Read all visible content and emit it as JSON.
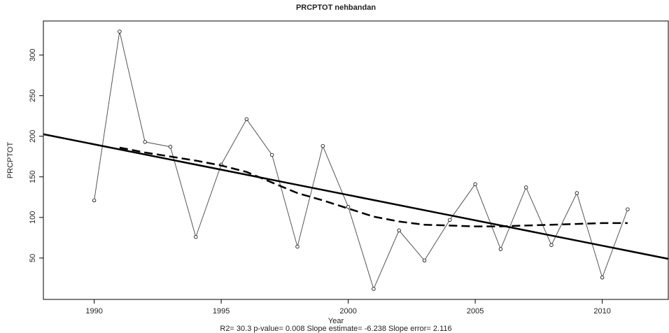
{
  "chart_data": {
    "type": "line",
    "title": "PRCPTOT   nehbandan",
    "x_label": "Year",
    "y_label": "PRCPTOT",
    "footnote": "R2= 30.3  p-value= 0.008  Slope estimate= -6.238  Slope error= 2.116",
    "x": [
      1990,
      1991,
      1992,
      1993,
      1994,
      1995,
      1996,
      1997,
      1998,
      1999,
      2000,
      2001,
      2002,
      2003,
      2004,
      2005,
      2006,
      2007,
      2008,
      2009,
      2010,
      2011
    ],
    "series": [
      {
        "name": "PRCPTOT",
        "color": "#555555",
        "style": "points-line",
        "values": [
          121,
          329,
          193,
          187,
          76,
          165,
          221,
          177,
          64,
          188,
          113,
          12,
          84,
          47,
          97,
          141,
          61,
          137,
          66,
          130,
          26,
          110
        ]
      },
      {
        "name": "lowess",
        "color": "#000000",
        "style": "dashed",
        "x": [
          1991,
          1992,
          1993,
          1994,
          1995,
          1996,
          1997,
          1998,
          1999,
          2000,
          2001,
          2002,
          2003,
          2004,
          2005,
          2006,
          2007,
          2008,
          2009,
          2010,
          2011
        ],
        "values": [
          186,
          180,
          175,
          170,
          164,
          156,
          143,
          130,
          121,
          111,
          101,
          95,
          91,
          90,
          89,
          89,
          90,
          91,
          92,
          93,
          93
        ]
      },
      {
        "name": "trend",
        "color": "#000000",
        "style": "solid",
        "x": [
          1988,
          2012.6
        ],
        "values": [
          202.5,
          49
        ]
      }
    ],
    "xlim": [
      1988,
      2012.6
    ],
    "ylim": [
      -1,
      342
    ],
    "xticks": [
      1990,
      1995,
      2000,
      2005,
      2010
    ],
    "yticks": [
      50,
      100,
      150,
      200,
      250,
      300
    ]
  }
}
